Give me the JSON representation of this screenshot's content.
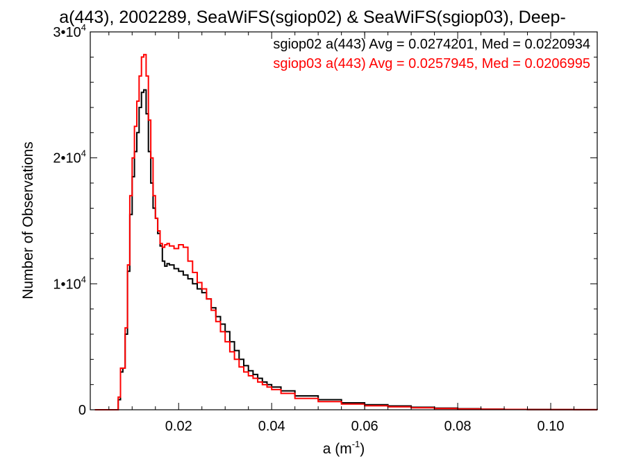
{
  "chart_data": {
    "type": "line",
    "title": "a(443), 2002289, SeaWiFS(sgiop02) & SeaWiFS(sgiop03), Deep-",
    "xlabel": "a (m",
    "xlabel_sup": "-1",
    "xlabel_close": ")",
    "ylabel": "Number of Observations",
    "xlim": [
      0.001,
      0.11
    ],
    "ylim": [
      0,
      30000
    ],
    "x_ticks": [
      {
        "value": 0.02,
        "label": "0.02"
      },
      {
        "value": 0.04,
        "label": "0.04"
      },
      {
        "value": 0.06,
        "label": "0.06"
      },
      {
        "value": 0.08,
        "label": "0.08"
      },
      {
        "value": 0.1,
        "label": "0.10"
      }
    ],
    "y_ticks": [
      {
        "value": 0,
        "label": "0",
        "exp": ""
      },
      {
        "value": 10000,
        "label": "1•10",
        "exp": "4"
      },
      {
        "value": 20000,
        "label": "2•10",
        "exp": "4"
      },
      {
        "value": 30000,
        "label": "3•10",
        "exp": "4"
      }
    ],
    "grid": false,
    "legend_position": "top-right",
    "series": [
      {
        "name": "sgiop02",
        "legend": "sgiop02 a(443) Avg = 0.0274201, Med = 0.0220934",
        "color": "#000000",
        "x": [
          0.002,
          0.006,
          0.007,
          0.0075,
          0.008,
          0.0085,
          0.009,
          0.0095,
          0.01,
          0.0105,
          0.011,
          0.0115,
          0.012,
          0.0125,
          0.013,
          0.0135,
          0.014,
          0.0145,
          0.015,
          0.0155,
          0.016,
          0.0165,
          0.017,
          0.0175,
          0.018,
          0.019,
          0.02,
          0.021,
          0.022,
          0.023,
          0.024,
          0.025,
          0.026,
          0.027,
          0.028,
          0.029,
          0.03,
          0.031,
          0.032,
          0.033,
          0.034,
          0.035,
          0.036,
          0.037,
          0.038,
          0.039,
          0.04,
          0.042,
          0.045,
          0.05,
          0.055,
          0.06,
          0.065,
          0.07,
          0.075,
          0.08,
          0.085,
          0.09,
          0.095,
          0.1,
          0.105,
          0.11
        ],
        "y": [
          0,
          0,
          800,
          3000,
          3300,
          6000,
          11000,
          15500,
          18500,
          20500,
          22000,
          24000,
          25200,
          25400,
          23500,
          20500,
          18000,
          16000,
          15200,
          14000,
          13000,
          11800,
          11400,
          11600,
          11500,
          11200,
          11000,
          10700,
          10400,
          10000,
          9600,
          9300,
          8800,
          8100,
          7400,
          6800,
          6200,
          5400,
          4700,
          4000,
          3500,
          3100,
          2800,
          2500,
          2200,
          2000,
          1800,
          1500,
          1100,
          800,
          550,
          400,
          300,
          200,
          130,
          80,
          50,
          30,
          20,
          10,
          5,
          0
        ]
      },
      {
        "name": "sgiop03",
        "legend": "sgiop03 a(443) Avg = 0.0257945, Med = 0.0206995",
        "color": "#ff0000",
        "x": [
          0.002,
          0.006,
          0.007,
          0.0075,
          0.008,
          0.0085,
          0.009,
          0.0095,
          0.01,
          0.0105,
          0.011,
          0.0115,
          0.012,
          0.0125,
          0.013,
          0.0135,
          0.014,
          0.0145,
          0.015,
          0.0155,
          0.016,
          0.0165,
          0.017,
          0.0175,
          0.018,
          0.019,
          0.02,
          0.021,
          0.022,
          0.023,
          0.024,
          0.025,
          0.026,
          0.027,
          0.028,
          0.029,
          0.03,
          0.031,
          0.032,
          0.033,
          0.034,
          0.035,
          0.036,
          0.037,
          0.038,
          0.039,
          0.04,
          0.042,
          0.045,
          0.05,
          0.055,
          0.06,
          0.065,
          0.07,
          0.075,
          0.08,
          0.085,
          0.09,
          0.095,
          0.1,
          0.105,
          0.11
        ],
        "y": [
          0,
          0,
          1000,
          3300,
          3300,
          6500,
          11500,
          17000,
          20000,
          22500,
          24500,
          26500,
          28000,
          28200,
          26500,
          23000,
          20000,
          17000,
          15200,
          14200,
          13200,
          12900,
          13100,
          13200,
          13000,
          12800,
          13100,
          12900,
          11800,
          10900,
          10100,
          9600,
          8800,
          7900,
          7000,
          6200,
          5400,
          4600,
          4000,
          3400,
          3000,
          2700,
          2500,
          2200,
          2000,
          1800,
          1600,
          1300,
          900,
          650,
          450,
          320,
          230,
          160,
          100,
          60,
          40,
          25,
          15,
          10,
          5,
          0
        ]
      }
    ]
  }
}
